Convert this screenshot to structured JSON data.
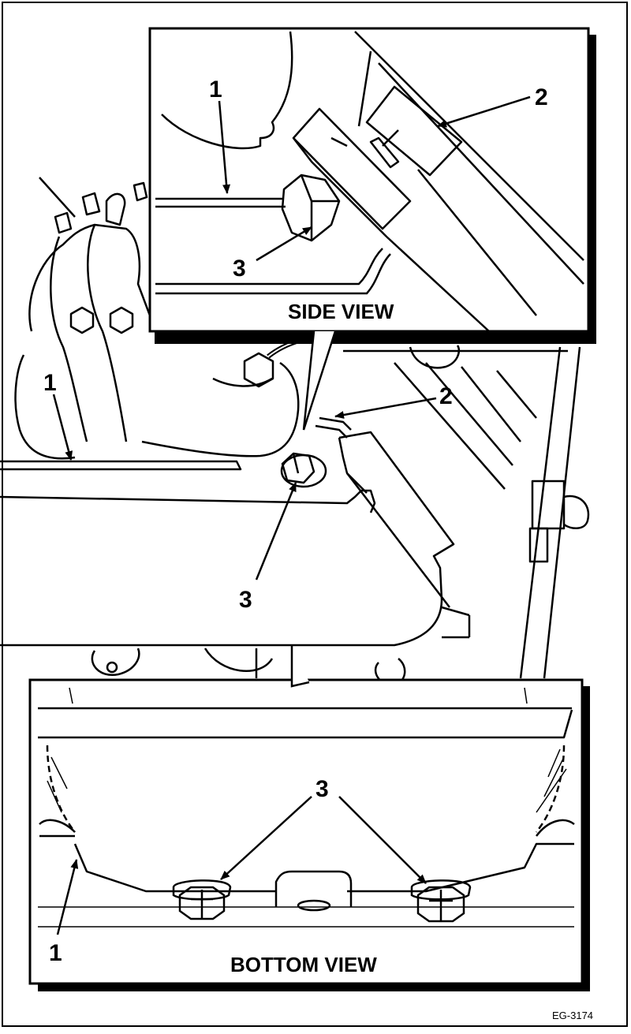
{
  "figure_id": "EG-3174",
  "callouts": {
    "one": "1",
    "two": "2",
    "three": "3"
  },
  "views": {
    "side": {
      "caption": "SIDE VIEW"
    },
    "bottom": {
      "caption": "BOTTOM VIEW"
    }
  },
  "colors": {
    "ink": "#000000",
    "paper": "#ffffff"
  }
}
